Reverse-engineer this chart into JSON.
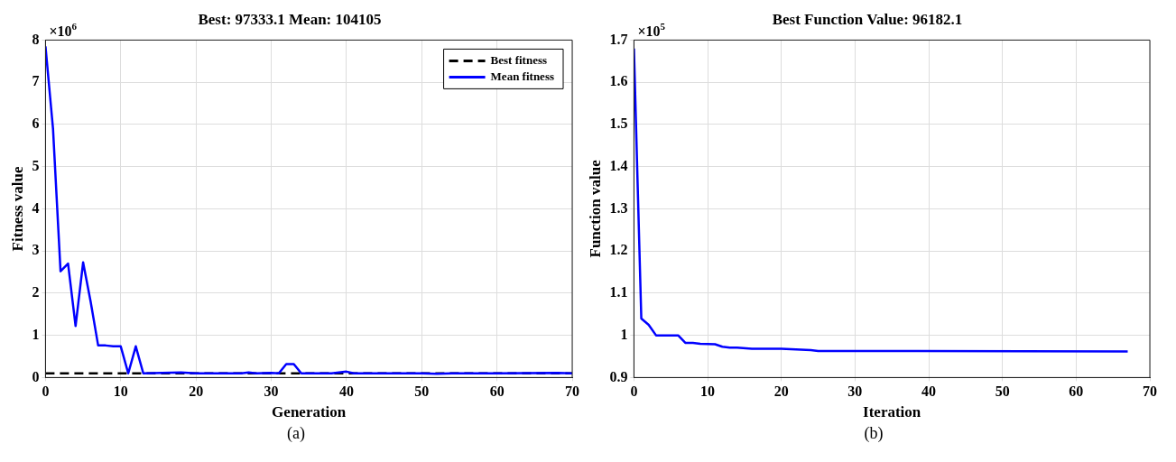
{
  "chart_data": [
    {
      "type": "line",
      "title": "Best: 97333.1 Mean: 104105",
      "xlabel": "Generation",
      "ylabel": "Fitness value",
      "annotations": [
        "×10$^{6}$",
        "(a)"
      ],
      "xlim": [
        0,
        70
      ],
      "xticks": [
        0,
        10,
        20,
        30,
        40,
        50,
        60,
        70
      ],
      "ylim": [
        0,
        8
      ],
      "yticks": [
        0,
        1,
        2,
        3,
        4,
        5,
        6,
        7,
        8
      ],
      "grid": true,
      "legend": "top right",
      "series": [
        {
          "name": "Best fitness",
          "color": "#000000",
          "line_style": "dashed",
          "x": [
            0,
            70
          ],
          "values": [
            0.1,
            0.1
          ]
        },
        {
          "name": "Mean fitness",
          "color": "#0000ff",
          "line_style": "solid",
          "x": [
            0,
            1,
            2,
            3,
            4,
            5,
            6,
            7,
            8,
            9,
            10,
            11,
            12,
            13,
            18,
            20,
            26,
            27,
            28,
            30,
            31,
            32,
            33,
            34,
            38,
            40,
            41,
            50,
            52,
            54,
            60,
            68,
            70
          ],
          "values": [
            7.85,
            5.9,
            2.52,
            2.7,
            1.22,
            2.73,
            1.8,
            0.76,
            0.76,
            0.74,
            0.74,
            0.1,
            0.74,
            0.1,
            0.12,
            0.1,
            0.1,
            0.12,
            0.1,
            0.11,
            0.1,
            0.32,
            0.32,
            0.1,
            0.1,
            0.14,
            0.1,
            0.1,
            0.09,
            0.1,
            0.1,
            0.11,
            0.1
          ]
        }
      ]
    },
    {
      "type": "line",
      "title": "Best Function Value: 96182.1",
      "xlabel": "Iteration",
      "ylabel": "Function value",
      "annotations": [
        "×10$^{5}$",
        "(b)"
      ],
      "xlim": [
        0,
        70
      ],
      "xticks": [
        0,
        10,
        20,
        30,
        40,
        50,
        60,
        70
      ],
      "ylim": [
        0.9,
        1.7
      ],
      "yticks": [
        0.9,
        1,
        1.1,
        1.2,
        1.3,
        1.4,
        1.5,
        1.6,
        1.7
      ],
      "grid": true,
      "series": [
        {
          "color": "#0000ff",
          "line_style": "solid",
          "x": [
            0,
            1,
            2,
            3,
            6,
            7,
            8,
            9,
            11,
            12,
            13,
            14,
            16,
            20,
            24,
            25,
            67
          ],
          "values": [
            1.68,
            1.04,
            1.025,
            1.0,
            1.0,
            0.982,
            0.982,
            0.98,
            0.979,
            0.973,
            0.971,
            0.971,
            0.968,
            0.968,
            0.965,
            0.963,
            0.962
          ]
        }
      ]
    }
  ]
}
